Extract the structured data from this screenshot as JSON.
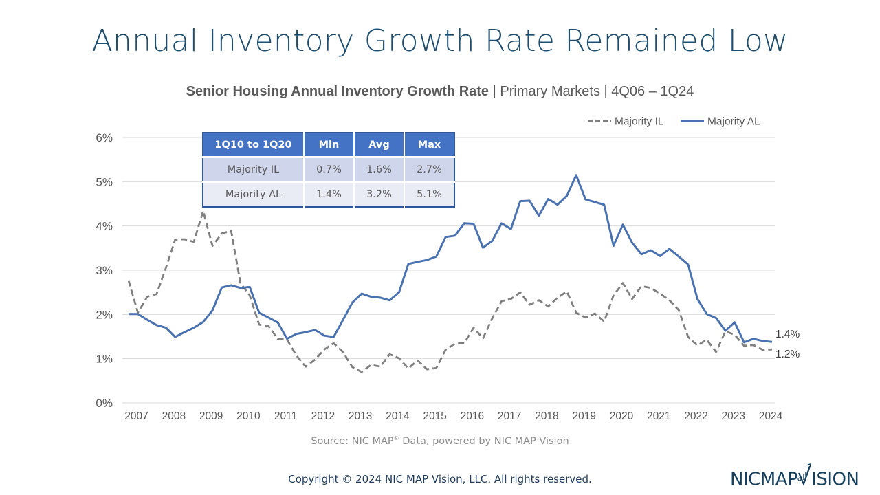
{
  "page": {
    "title": "Annual Inventory Growth Rate Remained Low",
    "subtitle_bold": "Senior Housing Annual Inventory Growth Rate",
    "subtitle_rest": " | Primary Markets | 4Q06 – 1Q24",
    "source_prefix": "Source: NIC MAP",
    "source_suffix": " Data, powered by NIC MAP Vision",
    "source_sup": "®",
    "copyright": "Copyright © 2024 NIC MAP Vision, LLC. All rights reserved.",
    "logo_left": "NICMAP",
    "logo_right": "ISION"
  },
  "stats_table": {
    "headers": [
      "1Q10 to 1Q20",
      "Min",
      "Avg",
      "Max"
    ],
    "rows": [
      [
        "Majority IL",
        "0.7%",
        "1.6%",
        "2.7%"
      ],
      [
        "Majority AL",
        "1.4%",
        "3.2%",
        "5.1%"
      ]
    ]
  },
  "chart_data": {
    "type": "line",
    "title": "Senior Housing Annual Inventory Growth Rate | Primary Markets | 4Q06 – 1Q24",
    "xlabel": "",
    "ylabel": "",
    "x_start": "4Q06",
    "x_end": "1Q24",
    "x_tick_labels": [
      "2007",
      "2008",
      "2009",
      "2010",
      "2011",
      "2012",
      "2013",
      "2014",
      "2015",
      "2016",
      "2017",
      "2018",
      "2019",
      "2020",
      "2021",
      "2022",
      "2023",
      "2024"
    ],
    "y_tick_labels": [
      "0%",
      "1%",
      "2%",
      "3%",
      "4%",
      "5%",
      "6%"
    ],
    "ylim": [
      0,
      6
    ],
    "grid": true,
    "legend_position": "top-right",
    "series": [
      {
        "name": "Majority IL",
        "style": "dashed",
        "color": "#7f7f7f",
        "end_label": "1.2%",
        "values": [
          2.77,
          2.04,
          2.4,
          2.46,
          3.05,
          3.69,
          3.7,
          3.64,
          4.34,
          3.55,
          3.83,
          3.89,
          2.71,
          2.43,
          1.77,
          1.74,
          1.45,
          1.43,
          1.07,
          0.82,
          0.98,
          1.21,
          1.35,
          1.15,
          0.81,
          0.7,
          0.86,
          0.82,
          1.1,
          1.01,
          0.78,
          0.96,
          0.76,
          0.79,
          1.2,
          1.34,
          1.35,
          1.7,
          1.46,
          1.91,
          2.3,
          2.35,
          2.5,
          2.22,
          2.32,
          2.18,
          2.38,
          2.52,
          2.04,
          1.93,
          2.02,
          1.84,
          2.43,
          2.71,
          2.35,
          2.64,
          2.6,
          2.47,
          2.32,
          2.1,
          1.49,
          1.3,
          1.43,
          1.15,
          1.62,
          1.54,
          1.29,
          1.31,
          1.2,
          1.21
        ]
      },
      {
        "name": "Majority AL",
        "style": "solid",
        "color": "#4a72b0",
        "end_label": "1.4%",
        "values": [
          2.01,
          2.01,
          1.88,
          1.76,
          1.7,
          1.49,
          1.6,
          1.7,
          1.83,
          2.09,
          2.61,
          2.66,
          2.6,
          2.62,
          2.04,
          1.93,
          1.82,
          1.45,
          1.56,
          1.6,
          1.65,
          1.52,
          1.49,
          1.88,
          2.27,
          2.47,
          2.4,
          2.38,
          2.32,
          2.5,
          3.14,
          3.19,
          3.23,
          3.31,
          3.75,
          3.78,
          4.06,
          4.05,
          3.51,
          3.66,
          4.06,
          3.93,
          4.56,
          4.57,
          4.23,
          4.61,
          4.48,
          4.68,
          5.15,
          4.6,
          4.54,
          4.48,
          3.55,
          4.03,
          3.62,
          3.36,
          3.45,
          3.32,
          3.48,
          3.31,
          3.13,
          2.35,
          2.01,
          1.92,
          1.63,
          1.82,
          1.37,
          1.45,
          1.4,
          1.38
        ]
      }
    ]
  }
}
